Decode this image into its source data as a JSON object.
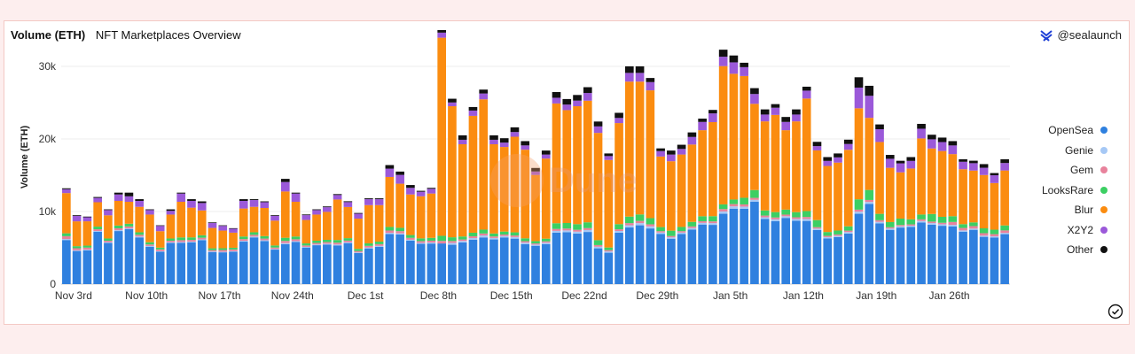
{
  "header": {
    "title": "Volume (ETH)",
    "subtitle": "NFT Marketplaces Overview"
  },
  "brand": {
    "handle": "@sealaunch",
    "icon": "sealaunch-logo-icon"
  },
  "watermark": {
    "text": "Dune"
  },
  "colors": {
    "OpenSea": "#2f80df",
    "Genie": "#a6c8f5",
    "Gem": "#e8829c",
    "LooksRare": "#3ccf63",
    "Blur": "#fb8c10",
    "X2Y2": "#9b59d9",
    "Other": "#111111"
  },
  "chart_data": {
    "type": "bar",
    "stacked": true,
    "ylabel": "Volume (ETH)",
    "ylim": [
      0,
      35000
    ],
    "yticks": [
      0,
      10000,
      20000,
      30000
    ],
    "ytick_labels": [
      "0",
      "10k",
      "20k",
      "30k"
    ],
    "xtick_labels": [
      "Nov 3rd",
      "Nov 10th",
      "Nov 17th",
      "Nov 24th",
      "Dec 1st",
      "Dec 8th",
      "Dec 15th",
      "Dec 22nd",
      "Dec 29th",
      "Jan 5th",
      "Jan 12th",
      "Jan 19th",
      "Jan 26th"
    ],
    "xtick_step_days": 7,
    "legend": [
      "OpenSea",
      "Genie",
      "Gem",
      "LooksRare",
      "Blur",
      "X2Y2",
      "Other"
    ],
    "legend_position": "right",
    "grid": true,
    "series_order": [
      "OpenSea",
      "Genie",
      "Gem",
      "LooksRare",
      "Blur",
      "X2Y2",
      "Other"
    ],
    "totals": [
      13200,
      9500,
      9300,
      12000,
      10300,
      12600,
      12600,
      11700,
      10300,
      8100,
      10300,
      12600,
      11700,
      11400,
      8500,
      8100,
      7700,
      11700,
      11700,
      11400,
      9500,
      14500,
      12600,
      9500,
      10300,
      10700,
      12400,
      11300,
      9700,
      11700,
      11700,
      16400,
      15200,
      13000,
      12600,
      13000,
      35000,
      25800,
      20500,
      24400,
      26800,
      20500,
      20100,
      21600,
      19700,
      16000,
      18400,
      26200,
      25500,
      25800,
      26600,
      22400,
      18000,
      23600,
      30000,
      30000,
      28400,
      18700,
      18400,
      19200,
      20900,
      22800,
      24000,
      32300,
      31500,
      30500,
      27000,
      23600,
      24800,
      22800,
      23600,
      27200,
      19600,
      17500,
      18000,
      19900,
      28500,
      27600,
      22000,
      17800,
      17700,
      17500,
      22300,
      21000,
      20600,
      19900,
      17200,
      17000,
      16700,
      15300,
      17200
    ],
    "share": {
      "OpenSea": [
        0.46,
        0.48,
        0.5,
        0.6,
        0.55,
        0.58,
        0.6,
        0.55,
        0.5,
        0.55,
        0.55,
        0.45,
        0.49,
        0.53,
        0.52,
        0.54,
        0.58,
        0.5,
        0.55,
        0.52,
        0.5,
        0.38,
        0.46,
        0.53,
        0.52,
        0.51,
        0.43,
        0.5,
        0.44,
        0.42,
        0.44,
        0.42,
        0.45,
        0.46,
        0.44,
        0.43,
        0.16,
        0.21,
        0.28,
        0.25,
        0.24,
        0.3,
        0.32,
        0.29,
        0.28,
        0.33,
        0.3,
        0.27,
        0.28,
        0.27,
        0.27,
        0.22,
        0.24,
        0.3,
        0.26,
        0.27,
        0.27,
        0.37,
        0.34,
        0.36,
        0.36,
        0.36,
        0.34,
        0.3,
        0.33,
        0.34,
        0.42,
        0.38,
        0.35,
        0.4,
        0.37,
        0.32,
        0.38,
        0.36,
        0.36,
        0.35,
        0.34,
        0.4,
        0.38,
        0.42,
        0.44,
        0.45,
        0.38,
        0.39,
        0.39,
        0.4,
        0.42,
        0.44,
        0.39,
        0.42,
        0.4
      ],
      "Genie": [
        0.01,
        0.01,
        0.01,
        0.01,
        0.01,
        0.01,
        0.01,
        0.01,
        0.01,
        0.01,
        0.01,
        0.01,
        0.01,
        0.01,
        0.01,
        0.01,
        0.01,
        0.01,
        0.01,
        0.01,
        0.01,
        0.01,
        0.01,
        0.01,
        0.01,
        0.01,
        0.01,
        0.01,
        0.01,
        0.01,
        0.01,
        0.01,
        0.01,
        0.01,
        0.01,
        0.01,
        0.0,
        0.01,
        0.01,
        0.01,
        0.01,
        0.01,
        0.01,
        0.01,
        0.01,
        0.01,
        0.01,
        0.01,
        0.01,
        0.01,
        0.01,
        0.01,
        0.01,
        0.01,
        0.01,
        0.01,
        0.01,
        0.01,
        0.01,
        0.01,
        0.01,
        0.01,
        0.01,
        0.01,
        0.01,
        0.01,
        0.01,
        0.01,
        0.01,
        0.01,
        0.01,
        0.01,
        0.01,
        0.01,
        0.01,
        0.01,
        0.01,
        0.01,
        0.01,
        0.01,
        0.01,
        0.01,
        0.01,
        0.01,
        0.01,
        0.01,
        0.01,
        0.01,
        0.01,
        0.01,
        0.01
      ],
      "Gem": [
        0.03,
        0.03,
        0.03,
        0.02,
        0.02,
        0.02,
        0.02,
        0.02,
        0.02,
        0.03,
        0.02,
        0.02,
        0.02,
        0.02,
        0.02,
        0.03,
        0.03,
        0.02,
        0.02,
        0.02,
        0.02,
        0.02,
        0.02,
        0.02,
        0.02,
        0.02,
        0.02,
        0.02,
        0.02,
        0.02,
        0.02,
        0.02,
        0.02,
        0.02,
        0.02,
        0.02,
        0.01,
        0.01,
        0.01,
        0.01,
        0.01,
        0.01,
        0.01,
        0.01,
        0.01,
        0.01,
        0.01,
        0.01,
        0.01,
        0.01,
        0.01,
        0.01,
        0.01,
        0.01,
        0.01,
        0.01,
        0.01,
        0.01,
        0.01,
        0.01,
        0.01,
        0.01,
        0.01,
        0.01,
        0.01,
        0.01,
        0.01,
        0.01,
        0.01,
        0.01,
        0.01,
        0.01,
        0.01,
        0.01,
        0.01,
        0.01,
        0.01,
        0.01,
        0.01,
        0.01,
        0.01,
        0.01,
        0.01,
        0.01,
        0.01,
        0.02,
        0.02,
        0.02,
        0.02,
        0.02,
        0.02
      ],
      "LooksRare": [
        0.03,
        0.03,
        0.03,
        0.03,
        0.03,
        0.03,
        0.03,
        0.03,
        0.03,
        0.03,
        0.03,
        0.03,
        0.03,
        0.03,
        0.03,
        0.03,
        0.03,
        0.03,
        0.03,
        0.03,
        0.03,
        0.03,
        0.03,
        0.03,
        0.03,
        0.03,
        0.03,
        0.03,
        0.03,
        0.03,
        0.03,
        0.03,
        0.03,
        0.03,
        0.03,
        0.03,
        0.02,
        0.02,
        0.02,
        0.02,
        0.02,
        0.02,
        0.02,
        0.02,
        0.02,
        0.02,
        0.02,
        0.03,
        0.03,
        0.03,
        0.03,
        0.03,
        0.02,
        0.03,
        0.03,
        0.03,
        0.03,
        0.03,
        0.04,
        0.03,
        0.03,
        0.03,
        0.03,
        0.02,
        0.02,
        0.03,
        0.04,
        0.03,
        0.03,
        0.03,
        0.03,
        0.03,
        0.05,
        0.03,
        0.03,
        0.03,
        0.05,
        0.05,
        0.04,
        0.04,
        0.05,
        0.04,
        0.03,
        0.05,
        0.04,
        0.04,
        0.03,
        0.03,
        0.04,
        0.04,
        0.04
      ],
      "Blur": [
        0.42,
        0.36,
        0.36,
        0.28,
        0.31,
        0.27,
        0.24,
        0.3,
        0.37,
        0.28,
        0.32,
        0.39,
        0.35,
        0.3,
        0.33,
        0.3,
        0.27,
        0.33,
        0.3,
        0.34,
        0.36,
        0.44,
        0.38,
        0.34,
        0.35,
        0.36,
        0.45,
        0.38,
        0.43,
        0.45,
        0.43,
        0.42,
        0.4,
        0.43,
        0.46,
        0.47,
        0.78,
        0.7,
        0.62,
        0.66,
        0.67,
        0.6,
        0.58,
        0.61,
        0.62,
        0.57,
        0.6,
        0.63,
        0.61,
        0.63,
        0.63,
        0.66,
        0.67,
        0.59,
        0.62,
        0.61,
        0.62,
        0.52,
        0.52,
        0.52,
        0.51,
        0.52,
        0.54,
        0.59,
        0.55,
        0.55,
        0.44,
        0.52,
        0.54,
        0.48,
        0.53,
        0.57,
        0.49,
        0.52,
        0.52,
        0.53,
        0.44,
        0.36,
        0.45,
        0.42,
        0.36,
        0.4,
        0.47,
        0.43,
        0.44,
        0.43,
        0.44,
        0.42,
        0.44,
        0.42,
        0.44
      ],
      "X2Y2": [
        0.04,
        0.08,
        0.06,
        0.05,
        0.07,
        0.07,
        0.06,
        0.07,
        0.06,
        0.09,
        0.05,
        0.09,
        0.08,
        0.09,
        0.08,
        0.08,
        0.07,
        0.09,
        0.08,
        0.07,
        0.07,
        0.09,
        0.09,
        0.07,
        0.06,
        0.06,
        0.05,
        0.06,
        0.07,
        0.07,
        0.07,
        0.07,
        0.08,
        0.07,
        0.05,
        0.05,
        0.02,
        0.02,
        0.03,
        0.03,
        0.03,
        0.03,
        0.03,
        0.03,
        0.03,
        0.03,
        0.03,
        0.03,
        0.03,
        0.03,
        0.04,
        0.04,
        0.03,
        0.03,
        0.04,
        0.04,
        0.04,
        0.04,
        0.05,
        0.04,
        0.05,
        0.05,
        0.05,
        0.04,
        0.05,
        0.04,
        0.05,
        0.04,
        0.04,
        0.05,
        0.04,
        0.04,
        0.03,
        0.04,
        0.04,
        0.04,
        0.1,
        0.11,
        0.08,
        0.07,
        0.07,
        0.06,
        0.06,
        0.06,
        0.06,
        0.06,
        0.06,
        0.06,
        0.06,
        0.07,
        0.06
      ],
      "Other": [
        0.01,
        0.01,
        0.01,
        0.01,
        0.01,
        0.02,
        0.04,
        0.02,
        0.01,
        0.01,
        0.02,
        0.01,
        0.02,
        0.02,
        0.01,
        0.01,
        0.01,
        0.02,
        0.01,
        0.01,
        0.01,
        0.03,
        0.01,
        0.01,
        0.01,
        0.01,
        0.01,
        0.01,
        0.01,
        0.01,
        0.01,
        0.03,
        0.03,
        0.03,
        0.01,
        0.01,
        0.01,
        0.02,
        0.03,
        0.02,
        0.02,
        0.03,
        0.03,
        0.03,
        0.03,
        0.03,
        0.03,
        0.03,
        0.03,
        0.03,
        0.03,
        0.03,
        0.02,
        0.03,
        0.03,
        0.03,
        0.02,
        0.02,
        0.03,
        0.03,
        0.03,
        0.02,
        0.02,
        0.03,
        0.03,
        0.02,
        0.03,
        0.03,
        0.02,
        0.03,
        0.03,
        0.02,
        0.03,
        0.03,
        0.03,
        0.03,
        0.05,
        0.05,
        0.03,
        0.03,
        0.02,
        0.03,
        0.03,
        0.03,
        0.03,
        0.03,
        0.02,
        0.02,
        0.03,
        0.02,
        0.03
      ]
    }
  }
}
